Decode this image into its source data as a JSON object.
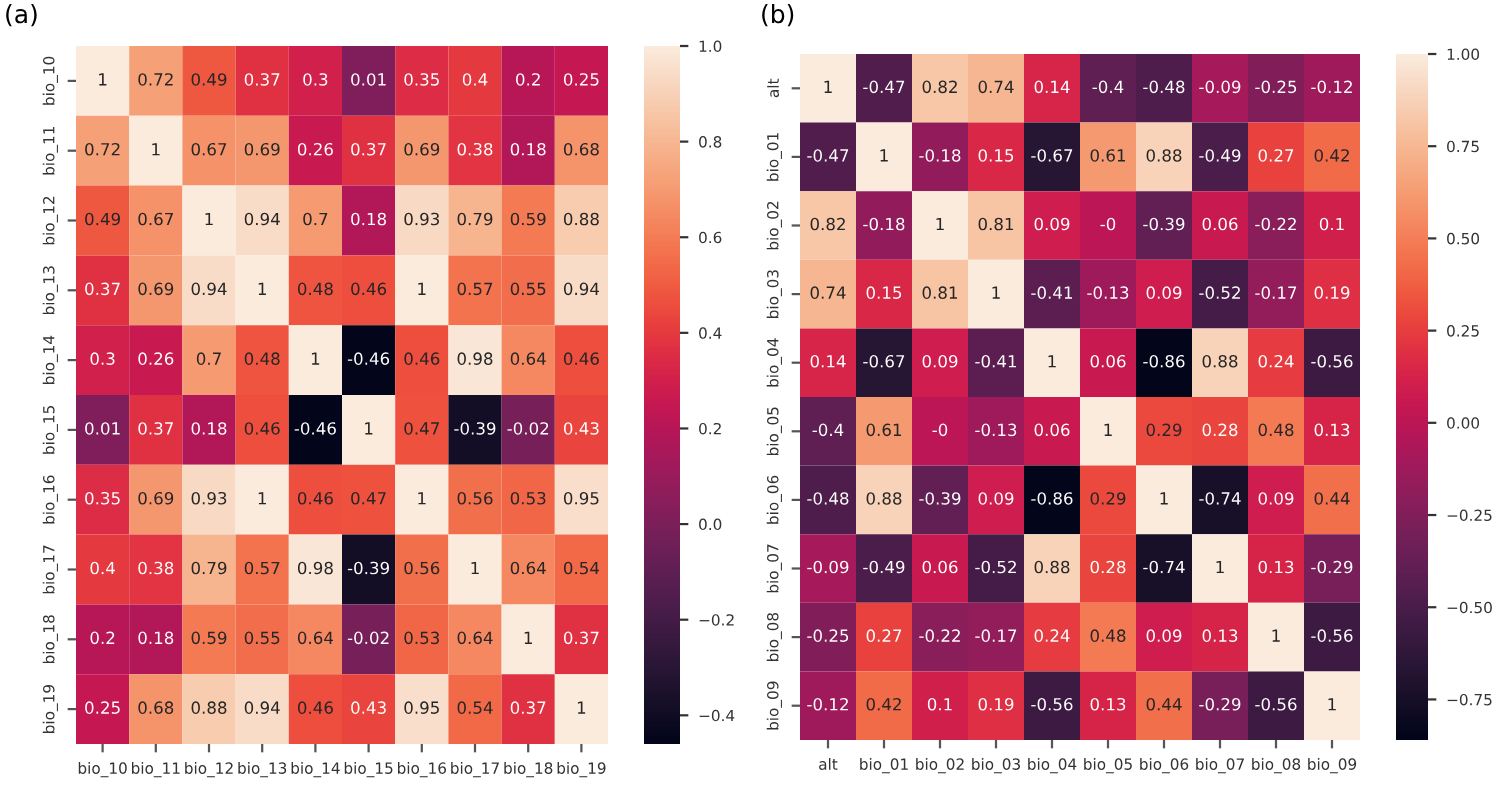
{
  "chart_data": [
    {
      "type": "heatmap",
      "title": "(a)",
      "categories": [
        "bio_10",
        "bio_11",
        "bio_12",
        "bio_13",
        "bio_14",
        "bio_15",
        "bio_16",
        "bio_17",
        "bio_18",
        "bio_19"
      ],
      "y_categories": [
        "bio_10",
        "bio_11",
        "bio_12",
        "bio_13",
        "bio_14",
        "bio_15",
        "bio_16",
        "bio_17",
        "bio_18",
        "bio_19"
      ],
      "cells": [
        [
          1,
          0.72,
          0.49,
          0.37,
          0.3,
          0.01,
          0.35,
          0.4,
          0.2,
          0.25
        ],
        [
          0.72,
          1,
          0.67,
          0.69,
          0.26,
          0.37,
          0.69,
          0.38,
          0.18,
          0.68
        ],
        [
          0.49,
          0.67,
          1,
          0.94,
          0.7,
          0.18,
          0.93,
          0.79,
          0.59,
          0.88
        ],
        [
          0.37,
          0.69,
          0.94,
          1,
          0.48,
          0.46,
          1,
          0.57,
          0.55,
          0.94
        ],
        [
          0.3,
          0.26,
          0.7,
          0.48,
          1,
          -0.46,
          0.46,
          0.98,
          0.64,
          0.46
        ],
        [
          0.01,
          0.37,
          0.18,
          0.46,
          -0.46,
          1,
          0.47,
          -0.39,
          -0.02,
          0.43
        ],
        [
          0.35,
          0.69,
          0.93,
          1,
          0.46,
          0.47,
          1,
          0.56,
          0.53,
          0.95
        ],
        [
          0.4,
          0.38,
          0.79,
          0.57,
          0.98,
          -0.39,
          0.56,
          1,
          0.64,
          0.54
        ],
        [
          0.2,
          0.18,
          0.59,
          0.55,
          0.64,
          -0.02,
          0.53,
          0.64,
          1,
          0.37
        ],
        [
          0.25,
          0.68,
          0.88,
          0.94,
          0.46,
          0.43,
          0.95,
          0.54,
          0.37,
          1
        ]
      ],
      "cell_labels": [
        [
          "1",
          "0.72",
          "0.49",
          "0.37",
          "0.3",
          "0.01",
          "0.35",
          "0.4",
          "0.2",
          "0.25"
        ],
        [
          "0.72",
          "1",
          "0.67",
          "0.69",
          "0.26",
          "0.37",
          "0.69",
          "0.38",
          "0.18",
          "0.68"
        ],
        [
          "0.49",
          "0.67",
          "1",
          "0.94",
          "0.7",
          "0.18",
          "0.93",
          "0.79",
          "0.59",
          "0.88"
        ],
        [
          "0.37",
          "0.69",
          "0.94",
          "1",
          "0.48",
          "0.46",
          "1",
          "0.57",
          "0.55",
          "0.94"
        ],
        [
          "0.3",
          "0.26",
          "0.7",
          "0.48",
          "1",
          "-0.46",
          "0.46",
          "0.98",
          "0.64",
          "0.46"
        ],
        [
          "0.01",
          "0.37",
          "0.18",
          "0.46",
          "-0.46",
          "1",
          "0.47",
          "-0.39",
          "-0.02",
          "0.43"
        ],
        [
          "0.35",
          "0.69",
          "0.93",
          "1",
          "0.46",
          "0.47",
          "1",
          "0.56",
          "0.53",
          "0.95"
        ],
        [
          "0.4",
          "0.38",
          "0.79",
          "0.57",
          "0.98",
          "-0.39",
          "0.56",
          "1",
          "0.64",
          "0.54"
        ],
        [
          "0.2",
          "0.18",
          "0.59",
          "0.55",
          "0.64",
          "-0.02",
          "0.53",
          "0.64",
          "1",
          "0.37"
        ],
        [
          "0.25",
          "0.68",
          "0.88",
          "0.94",
          "0.46",
          "0.43",
          "0.95",
          "0.54",
          "0.37",
          "1"
        ]
      ],
      "clim": [
        -0.46,
        1
      ],
      "cticks": [
        {
          "value": -0.4,
          "label": "−0.4"
        },
        {
          "value": -0.2,
          "label": "−0.2"
        },
        {
          "value": 0.0,
          "label": "0.0"
        },
        {
          "value": 0.2,
          "label": "0.2"
        },
        {
          "value": 0.4,
          "label": "0.4"
        },
        {
          "value": 0.6,
          "label": "0.6"
        },
        {
          "value": 0.8,
          "label": "0.8"
        },
        {
          "value": 1.0,
          "label": "1.0"
        }
      ]
    },
    {
      "type": "heatmap",
      "title": "(b)",
      "categories": [
        "alt",
        "bio_01",
        "bio_02",
        "bio_03",
        "bio_04",
        "bio_05",
        "bio_06",
        "bio_07",
        "bio_08",
        "bio_09"
      ],
      "y_categories": [
        "alt",
        "bio_01",
        "bio_02",
        "bio_03",
        "bio_04",
        "bio_05",
        "bio_06",
        "bio_07",
        "bio_08",
        "bio_09"
      ],
      "cells": [
        [
          1,
          -0.47,
          0.82,
          0.74,
          0.14,
          -0.4,
          -0.48,
          -0.09,
          -0.25,
          -0.12
        ],
        [
          -0.47,
          1,
          -0.18,
          0.15,
          -0.67,
          0.61,
          0.88,
          -0.49,
          0.27,
          0.42
        ],
        [
          0.82,
          -0.18,
          1,
          0.81,
          0.09,
          0,
          -0.39,
          0.06,
          -0.22,
          0.1
        ],
        [
          0.74,
          0.15,
          0.81,
          1,
          -0.41,
          -0.13,
          0.09,
          -0.52,
          -0.17,
          0.19
        ],
        [
          0.14,
          -0.67,
          0.09,
          -0.41,
          1,
          0.06,
          -0.86,
          0.88,
          0.24,
          -0.56
        ],
        [
          -0.4,
          0.61,
          0,
          -0.13,
          0.06,
          1,
          0.29,
          0.28,
          0.48,
          0.13
        ],
        [
          -0.48,
          0.88,
          -0.39,
          0.09,
          -0.86,
          0.29,
          1,
          -0.74,
          0.09,
          0.44
        ],
        [
          -0.09,
          -0.49,
          0.06,
          -0.52,
          0.88,
          0.28,
          -0.74,
          1,
          0.13,
          -0.29
        ],
        [
          -0.25,
          0.27,
          -0.22,
          -0.17,
          0.24,
          0.48,
          0.09,
          0.13,
          1,
          -0.56
        ],
        [
          -0.12,
          0.42,
          0.1,
          0.19,
          -0.56,
          0.13,
          0.44,
          -0.29,
          -0.56,
          1
        ]
      ],
      "cell_labels": [
        [
          "1",
          "-0.47",
          "0.82",
          "0.74",
          "0.14",
          "-0.4",
          "-0.48",
          "-0.09",
          "-0.25",
          "-0.12"
        ],
        [
          "-0.47",
          "1",
          "-0.18",
          "0.15",
          "-0.67",
          "0.61",
          "0.88",
          "-0.49",
          "0.27",
          "0.42"
        ],
        [
          "0.82",
          "-0.18",
          "1",
          "0.81",
          "0.09",
          "-0",
          "-0.39",
          "0.06",
          "-0.22",
          "0.1"
        ],
        [
          "0.74",
          "0.15",
          "0.81",
          "1",
          "-0.41",
          "-0.13",
          "0.09",
          "-0.52",
          "-0.17",
          "0.19"
        ],
        [
          "0.14",
          "-0.67",
          "0.09",
          "-0.41",
          "1",
          "0.06",
          "-0.86",
          "0.88",
          "0.24",
          "-0.56"
        ],
        [
          "-0.4",
          "0.61",
          "-0",
          "-0.13",
          "0.06",
          "1",
          "0.29",
          "0.28",
          "0.48",
          "0.13"
        ],
        [
          "-0.48",
          "0.88",
          "-0.39",
          "0.09",
          "-0.86",
          "0.29",
          "1",
          "-0.74",
          "0.09",
          "0.44"
        ],
        [
          "-0.09",
          "-0.49",
          "0.06",
          "-0.52",
          "0.88",
          "0.28",
          "-0.74",
          "1",
          "0.13",
          "-0.29"
        ],
        [
          "-0.25",
          "0.27",
          "-0.22",
          "-0.17",
          "0.24",
          "0.48",
          "0.09",
          "0.13",
          "1",
          "-0.56"
        ],
        [
          "-0.12",
          "0.42",
          "0.1",
          "0.19",
          "-0.56",
          "0.13",
          "0.44",
          "-0.29",
          "-0.56",
          "1"
        ]
      ],
      "clim": [
        -0.86,
        1
      ],
      "cticks": [
        {
          "value": -0.75,
          "label": "−0.75"
        },
        {
          "value": -0.5,
          "label": "−0.50"
        },
        {
          "value": -0.25,
          "label": "−0.25"
        },
        {
          "value": 0.0,
          "label": "0.00"
        },
        {
          "value": 0.25,
          "label": "0.25"
        },
        {
          "value": 0.5,
          "label": "0.50"
        },
        {
          "value": 0.75,
          "label": "0.75"
        },
        {
          "value": 1.0,
          "label": "1.00"
        }
      ]
    }
  ]
}
